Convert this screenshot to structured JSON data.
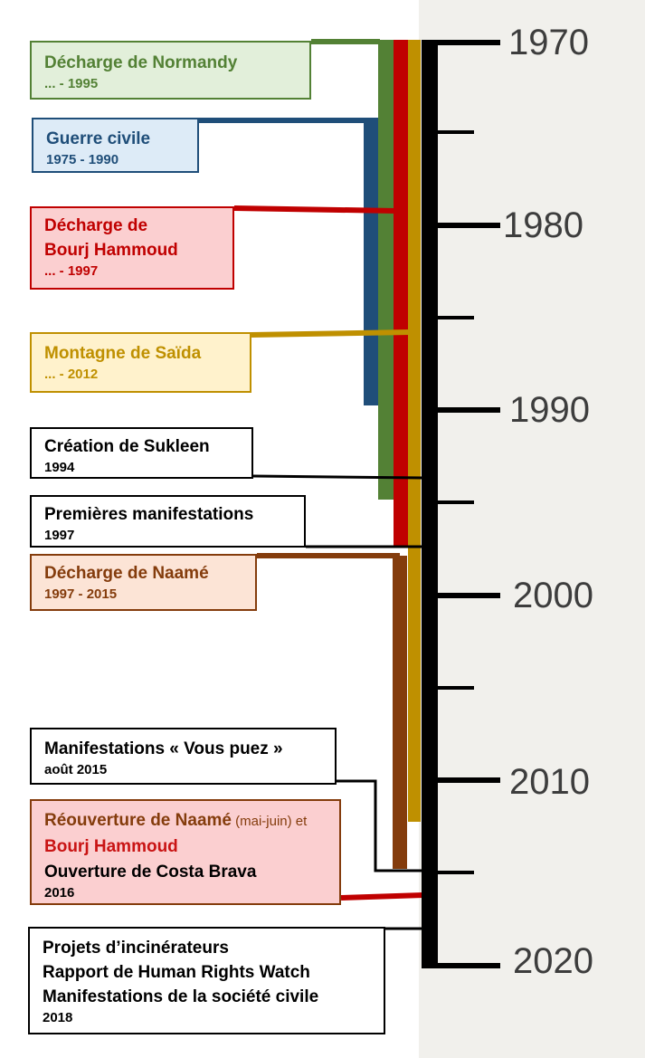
{
  "years": [
    "1970",
    "1980",
    "1990",
    "2000",
    "2010",
    "2020"
  ],
  "events": {
    "normandy": {
      "title": "Décharge de Normandy",
      "dates": "... - 1995"
    },
    "civil_war": {
      "title": "Guerre civile",
      "dates": "1975 - 1990"
    },
    "bourj": {
      "title_line1": "Décharge de",
      "title_line2": "Bourj Hammoud",
      "dates": "... - 1997"
    },
    "saida": {
      "title": "Montagne de Saïda",
      "dates": "... - 2012"
    },
    "sukleen": {
      "title": "Création de Sukleen",
      "dates": "1994"
    },
    "protests": {
      "title": "Premières manifestations",
      "dates": "1997"
    },
    "naame": {
      "title": "Décharge de Naamé",
      "dates": "1997 - 2015"
    },
    "vous_puez": {
      "title": "Manifestations « Vous puez »",
      "dates": "août 2015"
    },
    "reopening": {
      "part1": "Réouverture de Naamé",
      "part2": " (mai-juin) et ",
      "part3": "Bourj Hammoud",
      "line2": "Ouverture de Costa Brava",
      "dates": "2016"
    },
    "projects": {
      "line1": "Projets d’incinérateurs",
      "line2": "Rapport de Human Rights Watch",
      "line3": "Manifestations de la société civile",
      "dates": "2018"
    }
  },
  "colors": {
    "normandy": "#538135",
    "civil_war": "#1f4e79",
    "bourj": "#c00000",
    "saida": "#bf9000",
    "naame": "#843c0c",
    "axis": "#000000"
  }
}
